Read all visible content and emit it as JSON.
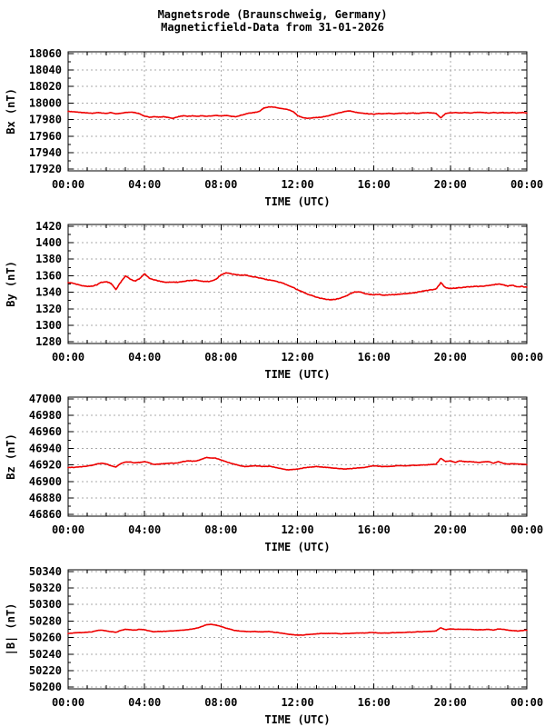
{
  "header": {
    "title_line1": "Magnetsrode (Braunschweig, Germany)",
    "title_line2": "Magneticfield-Data from 31-01-2026"
  },
  "colors": {
    "line": "#ee0000",
    "grid": "#aaaaaa",
    "axis": "#000000",
    "text": "#000000",
    "background": "#ffffff"
  },
  "chart_data": [
    {
      "id": "bx",
      "type": "line",
      "name": "Bx",
      "ylabel": "Bx (nT)",
      "xlabel": "TIME (UTC)",
      "ylim": [
        17920,
        18060
      ],
      "y_ticks": [
        17920,
        17940,
        17960,
        17980,
        18000,
        18020,
        18040,
        18060
      ],
      "y_minor_step": 10,
      "x_range_hours": [
        0,
        24
      ],
      "x_tick_hours": [
        0,
        4,
        8,
        12,
        16,
        20,
        24
      ],
      "x_tick_labels": [
        "00:00",
        "04:00",
        "08:00",
        "12:00",
        "16:00",
        "20:00",
        "00:00"
      ],
      "x_minor_step_hours": 1,
      "grid": true,
      "legend": "none",
      "x_step_hours": 0.25,
      "noise": 0.5,
      "values": [
        17990,
        17989.5,
        17989,
        17988.5,
        17988,
        17987.5,
        17988.5,
        17988,
        17987.5,
        17988.5,
        17987,
        17987.5,
        17988.5,
        17989,
        17988.5,
        17987,
        17984,
        17983,
        17983.5,
        17983,
        17983.5,
        17982.5,
        17981.5,
        17983.5,
        17984.5,
        17984,
        17984.5,
        17984,
        17984.5,
        17984,
        17984.5,
        17985,
        17984.5,
        17985,
        17984,
        17983.5,
        17985,
        17986.5,
        17988,
        17988.5,
        17990,
        17994,
        17995.5,
        17995,
        17994,
        17993,
        17992,
        17990,
        17985,
        17982.5,
        17981.5,
        17982,
        17982.5,
        17983,
        17984,
        17985.5,
        17987,
        17988.5,
        17990,
        17990.5,
        17989,
        17988,
        17987.5,
        17987,
        17986.5,
        17987.5,
        17987,
        17987.5,
        17987,
        17987.5,
        17988,
        17987.5,
        17988,
        17987.5,
        17988,
        17988.5,
        17988,
        17987.5,
        17982,
        17987.5,
        17988,
        17988.5,
        17988,
        17988.5,
        17988,
        17988.5,
        17989,
        17988.5,
        17988,
        17988.5,
        17988,
        17988.5,
        17988,
        17988.5,
        17988,
        17988.5,
        17988
      ]
    },
    {
      "id": "by",
      "type": "line",
      "name": "By",
      "ylabel": "By (nT)",
      "xlabel": "TIME (UTC)",
      "ylim": [
        1280,
        1420
      ],
      "y_ticks": [
        1280,
        1300,
        1320,
        1340,
        1360,
        1380,
        1400,
        1420
      ],
      "y_minor_step": 10,
      "x_range_hours": [
        0,
        24
      ],
      "x_tick_hours": [
        0,
        4,
        8,
        12,
        16,
        20,
        24
      ],
      "x_tick_labels": [
        "00:00",
        "04:00",
        "08:00",
        "12:00",
        "16:00",
        "20:00",
        "00:00"
      ],
      "x_minor_step_hours": 1,
      "grid": true,
      "legend": "none",
      "x_step_hours": 0.25,
      "noise": 0.7,
      "values": [
        1352,
        1351,
        1349.5,
        1348,
        1347,
        1347.5,
        1349,
        1352,
        1353,
        1350.5,
        1343.5,
        1352,
        1360,
        1356,
        1353.5,
        1356.5,
        1362.5,
        1357,
        1355,
        1353.5,
        1352.5,
        1352,
        1352.5,
        1352,
        1353,
        1354,
        1354.5,
        1354.5,
        1353.5,
        1353,
        1353.5,
        1356,
        1361,
        1363.5,
        1362.5,
        1361.5,
        1360.5,
        1361,
        1359.5,
        1358.5,
        1357.5,
        1356,
        1355,
        1354,
        1352.5,
        1351,
        1348.5,
        1346,
        1343,
        1340.5,
        1338,
        1336,
        1334,
        1332.5,
        1331.5,
        1331,
        1331.5,
        1333,
        1335,
        1338,
        1340.5,
        1340.5,
        1338.5,
        1337.5,
        1337,
        1337.5,
        1336.5,
        1337,
        1337,
        1337.5,
        1338,
        1338.5,
        1339,
        1340,
        1341,
        1342,
        1343,
        1344,
        1351.5,
        1345.5,
        1344.5,
        1345,
        1345.5,
        1346,
        1346.5,
        1347,
        1347,
        1347.5,
        1348,
        1349,
        1350,
        1349,
        1347.5,
        1348.5,
        1346.5,
        1347,
        1346
      ]
    },
    {
      "id": "bz",
      "type": "line",
      "name": "Bz",
      "ylabel": "Bz (nT)",
      "xlabel": "TIME (UTC)",
      "ylim": [
        46860,
        47000
      ],
      "y_ticks": [
        46860,
        46880,
        46900,
        46920,
        46940,
        46960,
        46980,
        47000
      ],
      "y_minor_step": 10,
      "x_range_hours": [
        0,
        24
      ],
      "x_tick_hours": [
        0,
        4,
        8,
        12,
        16,
        20,
        24
      ],
      "x_tick_labels": [
        "00:00",
        "04:00",
        "08:00",
        "12:00",
        "16:00",
        "20:00",
        "00:00"
      ],
      "x_minor_step_hours": 1,
      "grid": true,
      "legend": "none",
      "x_step_hours": 0.25,
      "noise": 0.5,
      "values": [
        46917,
        46917,
        46917.5,
        46918,
        46918.5,
        46919.5,
        46921,
        46922,
        46921,
        46919,
        46917.5,
        46921.5,
        46923.5,
        46923.5,
        46922.5,
        46923,
        46924,
        46922.5,
        46920.5,
        46921,
        46921.5,
        46922,
        46922,
        46922.5,
        46924,
        46925,
        46924.5,
        46925,
        46927,
        46929,
        46928.5,
        46928,
        46926,
        46924,
        46922,
        46920.5,
        46919,
        46918,
        46918.5,
        46919,
        46918.5,
        46918,
        46918.5,
        46917.5,
        46916,
        46915,
        46914,
        46914.5,
        46915,
        46916,
        46917,
        46917.5,
        46918,
        46917.5,
        46917,
        46916.5,
        46916,
        46915.5,
        46915,
        46915.5,
        46916,
        46916.5,
        46917,
        46918,
        46919,
        46918.5,
        46918,
        46918,
        46918.5,
        46919,
        46919,
        46919,
        46919.5,
        46919.5,
        46920,
        46920,
        46920.5,
        46921,
        46928,
        46924,
        46925,
        46923,
        46925,
        46924,
        46924,
        46923.5,
        46923,
        46923.5,
        46924,
        46922,
        46924,
        46922,
        46921,
        46921.5,
        46921,
        46921,
        46920.5
      ]
    },
    {
      "id": "btotal",
      "type": "line",
      "name": "|B|",
      "ylabel": "|B| (nT)",
      "xlabel": "TIME (UTC)",
      "ylim": [
        50200,
        50340
      ],
      "y_ticks": [
        50200,
        50220,
        50240,
        50260,
        50280,
        50300,
        50320,
        50340
      ],
      "y_minor_step": 10,
      "x_range_hours": [
        0,
        24
      ],
      "x_tick_hours": [
        0,
        4,
        8,
        12,
        16,
        20,
        24
      ],
      "x_tick_labels": [
        "00:00",
        "04:00",
        "08:00",
        "12:00",
        "16:00",
        "20:00",
        "00:00"
      ],
      "x_minor_step_hours": 1,
      "grid": true,
      "legend": "none",
      "x_step_hours": 0.25,
      "noise": 0.4,
      "values": [
        50265,
        50265.5,
        50266,
        50266,
        50266.5,
        50267,
        50268.5,
        50269,
        50268,
        50267,
        50266.5,
        50268.5,
        50270,
        50269.5,
        50269,
        50270,
        50269.5,
        50268,
        50267,
        50267.5,
        50267.5,
        50268,
        50268,
        50268.5,
        50269,
        50269.5,
        50270.5,
        50271.5,
        50273.5,
        50275.5,
        50276,
        50275,
        50273.5,
        50271.5,
        50270,
        50268.5,
        50268,
        50267.5,
        50267,
        50267.5,
        50267,
        50267,
        50267.5,
        50266.5,
        50266,
        50265,
        50264,
        50263.5,
        50263,
        50263,
        50263.5,
        50264,
        50264.5,
        50265,
        50265,
        50265,
        50265,
        50264.5,
        50265,
        50265,
        50265.5,
        50265.5,
        50265.5,
        50266,
        50266,
        50265.5,
        50265.5,
        50265.5,
        50266,
        50266,
        50266,
        50266.5,
        50266.5,
        50267,
        50267,
        50267.5,
        50267.5,
        50268,
        50272,
        50269.5,
        50270.5,
        50270,
        50270,
        50270,
        50270,
        50269.5,
        50269.5,
        50269.5,
        50270,
        50269,
        50270.5,
        50270,
        50269,
        50268.5,
        50268,
        50268.5,
        50269
      ]
    }
  ]
}
